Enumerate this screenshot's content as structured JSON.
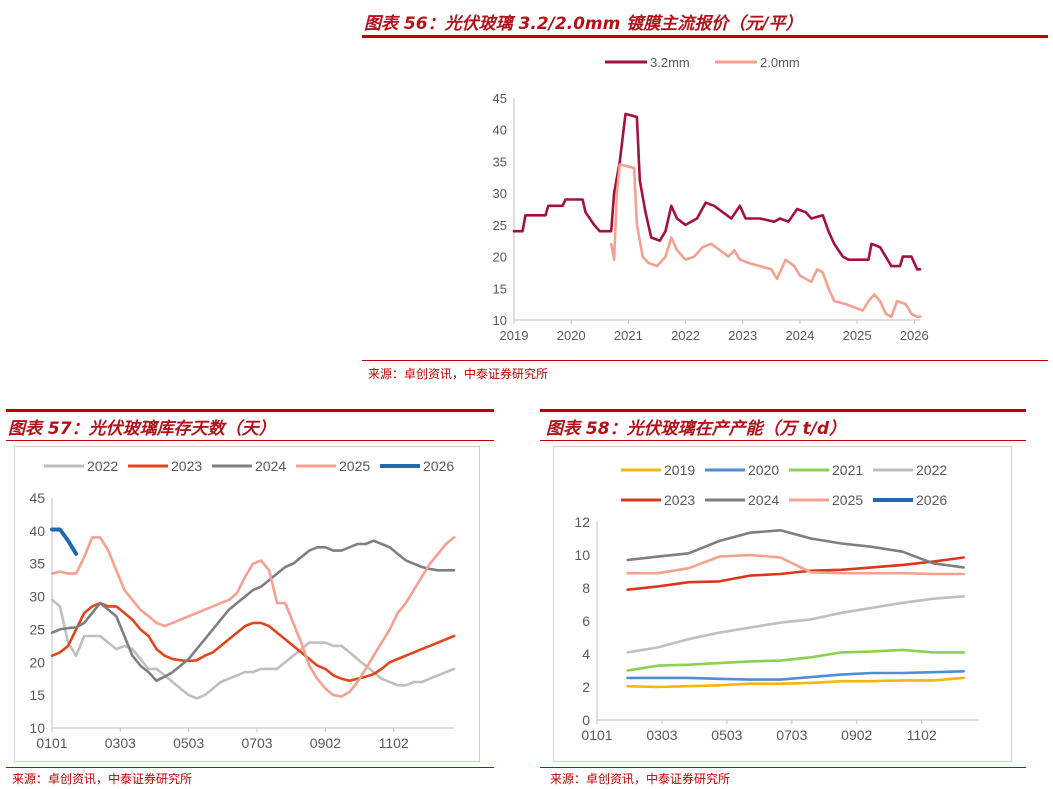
{
  "charts": [
    {
      "title": "图表 56：光伏玻璃 3.2/2.0mm 镀膜主流报价（元/平）",
      "source": "来源：卓创资讯，中泰证券研究所",
      "chart_data": {
        "type": "line",
        "title": "光伏玻璃 3.2/2.0mm 镀膜主流报价（元/平）",
        "ylim": [
          10,
          45
        ],
        "yticks": [
          10,
          15,
          20,
          25,
          30,
          35,
          40,
          45
        ],
        "xlim": [
          2019,
          2026.1
        ],
        "xticks": [
          "2019",
          "2020",
          "2021",
          "2022",
          "2023",
          "2024",
          "2025",
          "2026"
        ],
        "series": [
          {
            "name": "3.2mm",
            "color": "#a5103f",
            "points": [
              [
                2019.0,
                24
              ],
              [
                2019.15,
                24
              ],
              [
                2019.2,
                26.5
              ],
              [
                2019.55,
                26.5
              ],
              [
                2019.6,
                28
              ],
              [
                2019.85,
                28
              ],
              [
                2019.9,
                29
              ],
              [
                2020.2,
                29
              ],
              [
                2020.25,
                27
              ],
              [
                2020.4,
                25
              ],
              [
                2020.5,
                24
              ],
              [
                2020.7,
                24
              ],
              [
                2020.75,
                30
              ],
              [
                2020.85,
                35
              ],
              [
                2020.95,
                42.5
              ],
              [
                2021.15,
                42
              ],
              [
                2021.2,
                32
              ],
              [
                2021.3,
                27
              ],
              [
                2021.4,
                23
              ],
              [
                2021.55,
                22.5
              ],
              [
                2021.65,
                24
              ],
              [
                2021.75,
                28
              ],
              [
                2021.85,
                26
              ],
              [
                2022.0,
                25
              ],
              [
                2022.2,
                26
              ],
              [
                2022.35,
                28.5
              ],
              [
                2022.5,
                28
              ],
              [
                2022.65,
                27
              ],
              [
                2022.8,
                26
              ],
              [
                2022.95,
                28
              ],
              [
                2023.05,
                26
              ],
              [
                2023.3,
                26
              ],
              [
                2023.55,
                25.5
              ],
              [
                2023.65,
                26
              ],
              [
                2023.8,
                25.5
              ],
              [
                2023.95,
                27.5
              ],
              [
                2024.1,
                27
              ],
              [
                2024.2,
                26
              ],
              [
                2024.4,
                26.5
              ],
              [
                2024.5,
                24
              ],
              [
                2024.6,
                22
              ],
              [
                2024.75,
                20
              ],
              [
                2024.85,
                19.5
              ],
              [
                2025.2,
                19.5
              ],
              [
                2025.25,
                22
              ],
              [
                2025.4,
                21.5
              ],
              [
                2025.5,
                20
              ],
              [
                2025.6,
                18.5
              ],
              [
                2025.75,
                18.5
              ],
              [
                2025.8,
                20
              ],
              [
                2025.95,
                20
              ],
              [
                2026.0,
                19
              ],
              [
                2026.05,
                18
              ],
              [
                2026.1,
                18
              ]
            ]
          },
          {
            "name": "2.0mm",
            "color": "#f4a191",
            "points": [
              [
                2020.7,
                22
              ],
              [
                2020.75,
                19.5
              ],
              [
                2020.8,
                30
              ],
              [
                2020.85,
                34.5
              ],
              [
                2021.1,
                34
              ],
              [
                2021.15,
                25
              ],
              [
                2021.25,
                20
              ],
              [
                2021.35,
                19
              ],
              [
                2021.5,
                18.5
              ],
              [
                2021.65,
                20
              ],
              [
                2021.75,
                23
              ],
              [
                2021.85,
                21
              ],
              [
                2022.0,
                19.5
              ],
              [
                2022.15,
                20
              ],
              [
                2022.3,
                21.5
              ],
              [
                2022.45,
                22
              ],
              [
                2022.6,
                21
              ],
              [
                2022.75,
                20
              ],
              [
                2022.85,
                21
              ],
              [
                2022.95,
                19.5
              ],
              [
                2023.1,
                19
              ],
              [
                2023.3,
                18.5
              ],
              [
                2023.5,
                18
              ],
              [
                2023.6,
                16.5
              ],
              [
                2023.75,
                19.5
              ],
              [
                2023.9,
                18.5
              ],
              [
                2024.0,
                17
              ],
              [
                2024.2,
                16
              ],
              [
                2024.3,
                18
              ],
              [
                2024.4,
                17.5
              ],
              [
                2024.5,
                15
              ],
              [
                2024.6,
                13
              ],
              [
                2024.8,
                12.5
              ],
              [
                2024.95,
                12
              ],
              [
                2025.1,
                11.5
              ],
              [
                2025.2,
                13
              ],
              [
                2025.3,
                14
              ],
              [
                2025.4,
                13
              ],
              [
                2025.5,
                11
              ],
              [
                2025.6,
                10.5
              ],
              [
                2025.7,
                13
              ],
              [
                2025.85,
                12.5
              ],
              [
                2025.95,
                11
              ],
              [
                2026.05,
                10.5
              ],
              [
                2026.1,
                10.5
              ]
            ]
          }
        ]
      }
    },
    {
      "title": "图表 57：光伏玻璃库存天数（天）",
      "source": "来源：卓创资讯，中泰证券研究所",
      "chart_data": {
        "type": "line",
        "title": "光伏玻璃库存天数（天）",
        "ylim": [
          10,
          45
        ],
        "yticks": [
          10,
          15,
          20,
          25,
          30,
          35,
          40,
          45
        ],
        "xlim": [
          0,
          50
        ],
        "xticks": [
          "0101",
          "0303",
          "0503",
          "0703",
          "0902",
          "1102"
        ],
        "xtick_pos": [
          0,
          8.5,
          17,
          25.5,
          34,
          42.5
        ],
        "series": [
          {
            "name": "2022",
            "color": "#bfbfbf",
            "values": [
              29.5,
              28.5,
              23,
              21,
              24,
              24,
              24,
              23,
              22,
              22.5,
              22,
              20.5,
              19,
              19,
              18,
              17,
              16,
              15,
              14.5,
              15,
              16,
              17,
              17.5,
              18,
              18.5,
              18.5,
              19,
              19,
              19,
              20,
              21,
              22,
              23,
              23,
              23,
              22.5,
              22.5,
              21.5,
              20.5,
              19.5,
              18.5,
              17.5,
              17,
              16.5,
              16.5,
              17,
              17,
              17.5,
              18,
              18.5,
              19
            ]
          },
          {
            "name": "2023",
            "color": "#e2451b",
            "values": [
              21,
              21.5,
              22.5,
              25,
              27.5,
              28.5,
              29,
              28.5,
              28.5,
              27.5,
              26.5,
              25,
              24,
              22,
              21,
              20.5,
              20.3,
              20.2,
              20.3,
              21,
              21.5,
              22.5,
              23.5,
              24.5,
              25.5,
              26,
              26,
              25.5,
              24.5,
              23.5,
              22.5,
              21.5,
              20.5,
              19.5,
              19,
              18,
              17.5,
              17.2,
              17.5,
              17.8,
              18.2,
              19,
              20,
              20.5,
              21,
              21.5,
              22,
              22.5,
              23,
              23.5,
              24
            ]
          },
          {
            "name": "2024",
            "color": "#7f7f7f",
            "values": [
              24.5,
              25,
              25.2,
              25.3,
              26,
              27.5,
              29,
              28,
              27,
              24,
              21,
              19.5,
              18.5,
              17.2,
              17.8,
              18.5,
              19.5,
              20.5,
              22,
              23.5,
              25,
              26.5,
              28,
              29,
              30,
              31,
              31.5,
              32.5,
              33.5,
              34.5,
              35,
              36,
              37,
              37.5,
              37.5,
              37,
              37,
              37.5,
              38,
              38,
              38.5,
              38,
              37.5,
              36.5,
              35.5,
              35,
              34.5,
              34.2,
              34,
              34,
              34
            ]
          },
          {
            "name": "2025",
            "color": "#f4a191",
            "values": [
              33.5,
              33.8,
              33.5,
              33.5,
              36,
              39,
              39,
              37,
              34,
              31,
              29.5,
              28,
              27,
              26,
              25.5,
              26,
              26.5,
              27,
              27.5,
              28,
              28.5,
              29,
              29.5,
              30.5,
              33,
              35,
              35.5,
              34,
              29,
              29,
              26,
              23,
              19.5,
              17.5,
              16,
              15,
              14.8,
              15.5,
              17,
              19,
              21,
              23,
              25,
              27.5,
              29,
              31,
              33,
              35,
              36.5,
              38,
              39
            ]
          },
          {
            "name": "2026",
            "color": "#1f6ab1",
            "values": [
              40.2,
              40.2,
              38.5,
              36.5
            ]
          }
        ]
      }
    },
    {
      "title": "图表 58：光伏玻璃在产产能（万 t/d）",
      "source": "来源：卓创资讯，中泰证券研究所",
      "chart_data": {
        "type": "line",
        "title": "光伏玻璃在产产能（万 t/d）",
        "ylim": [
          0,
          12
        ],
        "yticks": [
          0,
          2,
          4,
          6,
          8,
          10,
          12
        ],
        "xlim": [
          0,
          50
        ],
        "xticks": [
          "0101",
          "0303",
          "0503",
          "0703",
          "0902",
          "1102"
        ],
        "xtick_pos": [
          0,
          8.5,
          17,
          25.5,
          34,
          42.5
        ],
        "series": [
          {
            "name": "2019",
            "color": "#f5b800",
            "x": [
              4,
              8,
              12,
              16,
              20,
              24,
              28,
              32,
              36,
              40,
              44,
              48
            ],
            "values": [
              2.05,
              2.0,
              2.05,
              2.1,
              2.2,
              2.2,
              2.25,
              2.35,
              2.35,
              2.4,
              2.4,
              2.55
            ]
          },
          {
            "name": "2020",
            "color": "#4f8fd1",
            "x": [
              4,
              8,
              12,
              16,
              20,
              24,
              28,
              32,
              36,
              40,
              44,
              48
            ],
            "values": [
              2.55,
              2.55,
              2.55,
              2.5,
              2.45,
              2.45,
              2.6,
              2.75,
              2.85,
              2.85,
              2.9,
              2.95
            ]
          },
          {
            "name": "2021",
            "color": "#8dd04f",
            "x": [
              4,
              8,
              12,
              16,
              20,
              24,
              28,
              32,
              36,
              40,
              44,
              48
            ],
            "values": [
              3.0,
              3.3,
              3.35,
              3.45,
              3.55,
              3.6,
              3.8,
              4.1,
              4.15,
              4.25,
              4.1,
              4.1
            ]
          },
          {
            "name": "2022",
            "color": "#bfbfbf",
            "x": [
              4,
              8,
              12,
              16,
              20,
              24,
              28,
              32,
              36,
              40,
              44,
              48
            ],
            "values": [
              4.1,
              4.4,
              4.9,
              5.3,
              5.6,
              5.9,
              6.1,
              6.5,
              6.8,
              7.1,
              7.35,
              7.5
            ]
          },
          {
            "name": "2023",
            "color": "#d9391a",
            "x": [
              4,
              8,
              12,
              16,
              20,
              24,
              28,
              32,
              36,
              40,
              44,
              48
            ],
            "values": [
              7.9,
              8.1,
              8.35,
              8.4,
              8.75,
              8.85,
              9.05,
              9.1,
              9.25,
              9.4,
              9.6,
              9.85
            ]
          },
          {
            "name": "2024",
            "color": "#7f7f7f",
            "x": [
              4,
              8,
              12,
              16,
              20,
              24,
              28,
              32,
              36,
              40,
              44,
              48
            ],
            "values": [
              9.7,
              9.9,
              10.1,
              10.85,
              11.35,
              11.5,
              11.0,
              10.7,
              10.5,
              10.2,
              9.5,
              9.25
            ]
          },
          {
            "name": "2025",
            "color": "#f4a191",
            "x": [
              4,
              8,
              12,
              16,
              20,
              24,
              28,
              32,
              36,
              40,
              44,
              48
            ],
            "values": [
              8.9,
              8.9,
              9.2,
              9.9,
              10.0,
              9.85,
              8.95,
              8.9,
              8.9,
              8.9,
              8.85,
              8.85
            ]
          },
          {
            "name": "2026",
            "color": "#1f6ab1",
            "x": [],
            "values": []
          }
        ]
      }
    }
  ]
}
